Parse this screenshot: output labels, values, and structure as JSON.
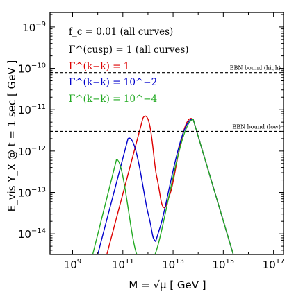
{
  "chart_data": {
    "type": "line",
    "xlabel": "M = √μ  [ GeV ]",
    "ylabel": "E_vis Y_X @ t = 1 sec [ GeV ]",
    "xscale": "log",
    "yscale": "log",
    "xlim": [
      126000000.0,
      2.5e+17
    ],
    "ylim": [
      3.16e-15,
      2.24e-09
    ],
    "grid": false,
    "x_tick_labels": [
      {
        "base": "10",
        "exp": "9"
      },
      {
        "base": "10",
        "exp": "11"
      },
      {
        "base": "10",
        "exp": "13"
      },
      {
        "base": "10",
        "exp": "15"
      },
      {
        "base": "10",
        "exp": "17"
      }
    ],
    "y_tick_labels": [
      {
        "base": "10",
        "exp": "−9"
      },
      {
        "base": "10",
        "exp": "−10"
      },
      {
        "base": "10",
        "exp": "−11"
      },
      {
        "base": "10",
        "exp": "−12"
      },
      {
        "base": "10",
        "exp": "−13"
      },
      {
        "base": "10",
        "exp": "−14"
      }
    ],
    "annotations": [
      {
        "text": "f_c = 0.01 (all curves)",
        "color": "#000000"
      },
      {
        "text": "Γ^(cusp) = 1 (all curves)",
        "color": "#000000"
      },
      {
        "text": "Γ^(k−k) = 1",
        "color": "#dd0000"
      },
      {
        "text": "Γ^(k−k) = 10^−2",
        "color": "#0000cc"
      },
      {
        "text": "Γ^(k−k) = 10^−4",
        "color": "#22aa22"
      }
    ],
    "bounds": [
      {
        "label": "BBN bound (high)",
        "y": 7.9e-11
      },
      {
        "label": "BBN bound (low)",
        "y": 3e-12
      }
    ],
    "series": [
      {
        "color": "#dd0000",
        "points": [
          [
            23000000000.0,
            3.16e-15
          ],
          [
            630000000000.0,
            6.3e-12
          ],
          [
            2200000000000.0,
            2.5e-13
          ],
          [
            4000000000000.0,
            4.5e-14
          ],
          [
            7900000000000.0,
            1e-13
          ],
          [
            63000000000000.0,
            5.8e-12
          ],
          [
            2500000000000000.0,
            3.16e-15
          ]
        ]
      },
      {
        "color": "#0000cc",
        "points": [
          [
            10000000000.0,
            3.16e-15
          ],
          [
            160000000000.0,
            2e-12
          ],
          [
            1000000000000.0,
            3.2e-14
          ],
          [
            1780000000000.0,
            7.2e-15
          ],
          [
            3200000000000.0,
            1.6e-14
          ],
          [
            63000000000000.0,
            5.8e-12
          ],
          [
            2500000000000000.0,
            3.16e-15
          ]
        ]
      },
      {
        "color": "#22aa22",
        "points": [
          [
            6300000000.0,
            3.16e-15
          ],
          [
            56000000000.0,
            6.3e-13
          ],
          [
            360000000000.0,
            3.16e-15
          ],
          [
            1900000000000.0,
            3.16e-15
          ],
          [
            63000000000000.0,
            5.8e-12
          ],
          [
            2500000000000000.0,
            3.16e-15
          ]
        ]
      }
    ]
  }
}
